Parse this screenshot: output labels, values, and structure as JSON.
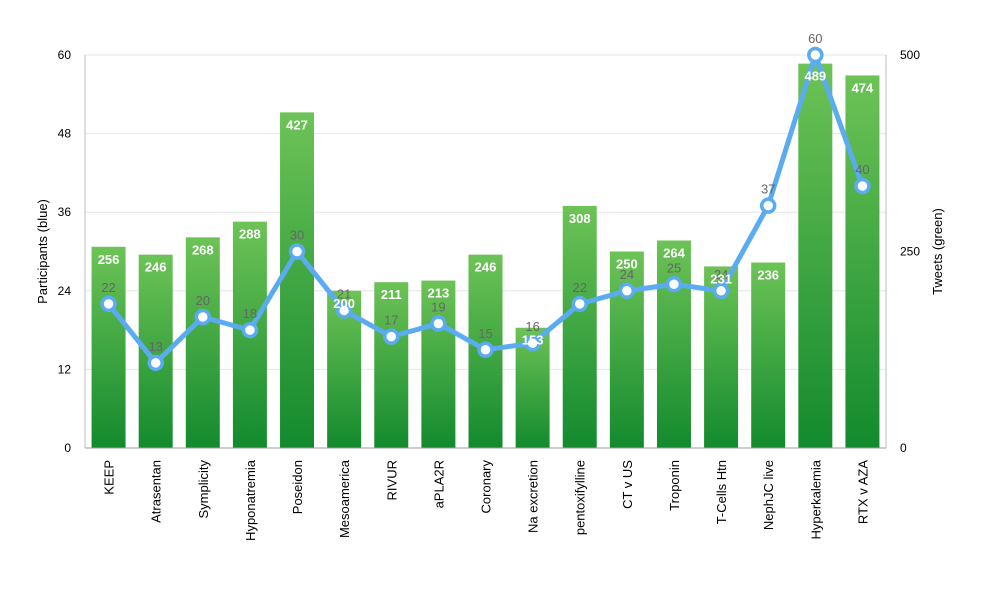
{
  "chart_data": {
    "type": "bar",
    "categories": [
      "KEEP",
      "Atrasentan",
      "Symplicity",
      "Hyponatremia",
      "Poseidon",
      "Mesoamerica",
      "RIVUR",
      "aPLA2R",
      "Coronary",
      "Na excretion",
      "pentoxifylline",
      "CT v US",
      "Troponin",
      "T-Cells Htn",
      "NephJC live",
      "Hyperkalemia",
      "RTX v AZA"
    ],
    "series": [
      {
        "name": "Tweets (green)",
        "type": "bar",
        "axis": "right",
        "values": [
          256,
          246,
          268,
          288,
          427,
          200,
          211,
          213,
          246,
          153,
          308,
          250,
          264,
          231,
          236,
          489,
          474
        ],
        "color": "#3daa3a"
      },
      {
        "name": "Participants (blue)",
        "type": "line",
        "axis": "left",
        "values": [
          22,
          13,
          20,
          18,
          30,
          21,
          17,
          19,
          15,
          16,
          22,
          24,
          25,
          24,
          37,
          60,
          40
        ],
        "color": "#5aabf0"
      }
    ],
    "ylabel": "Participants (blue)",
    "y2label": "Tweets (green)",
    "ylim": [
      0,
      60
    ],
    "yticks": [
      0,
      12,
      24,
      36,
      48,
      60
    ],
    "y2lim": [
      0,
      500
    ],
    "y2ticks": [
      0,
      250,
      500
    ],
    "grid": true,
    "legend": "none"
  }
}
